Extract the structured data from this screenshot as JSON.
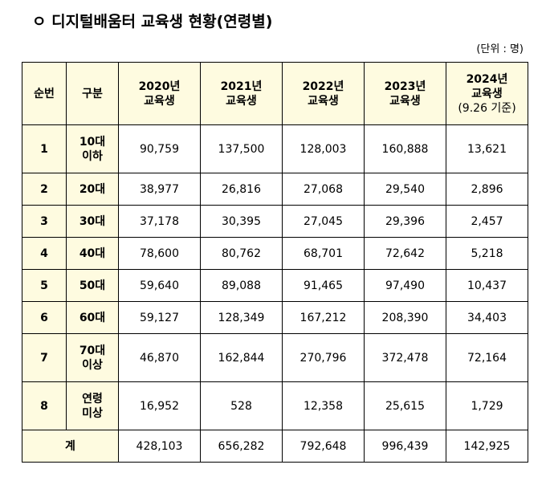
{
  "title": "ㅇ 디지털배움터 교육생 현황(연령별)",
  "unit": "(단위 : 명)",
  "headers": {
    "no": "순번",
    "category": "구분",
    "y2020_a": "2020년",
    "y2020_b": "교육생",
    "y2021_a": "2021년",
    "y2021_b": "교육생",
    "y2022_a": "2022년",
    "y2022_b": "교육생",
    "y2023_a": "2023년",
    "y2023_b": "교육생",
    "y2024_a": "2024년",
    "y2024_b": "교육생",
    "y2024_c": "(9.26 기준)"
  },
  "rows": [
    {
      "no": "1",
      "cat_a": "10대",
      "cat_b": "이하",
      "v2020": "90,759",
      "v2021": "137,500",
      "v2022": "128,003",
      "v2023": "160,888",
      "v2024": "13,621"
    },
    {
      "no": "2",
      "cat_a": "20대",
      "cat_b": "",
      "v2020": "38,977",
      "v2021": "26,816",
      "v2022": "27,068",
      "v2023": "29,540",
      "v2024": "2,896"
    },
    {
      "no": "3",
      "cat_a": "30대",
      "cat_b": "",
      "v2020": "37,178",
      "v2021": "30,395",
      "v2022": "27,045",
      "v2023": "29,396",
      "v2024": "2,457"
    },
    {
      "no": "4",
      "cat_a": "40대",
      "cat_b": "",
      "v2020": "78,600",
      "v2021": "80,762",
      "v2022": "68,701",
      "v2023": "72,642",
      "v2024": "5,218"
    },
    {
      "no": "5",
      "cat_a": "50대",
      "cat_b": "",
      "v2020": "59,640",
      "v2021": "89,088",
      "v2022": "91,465",
      "v2023": "97,490",
      "v2024": "10,437"
    },
    {
      "no": "6",
      "cat_a": "60대",
      "cat_b": "",
      "v2020": "59,127",
      "v2021": "128,349",
      "v2022": "167,212",
      "v2023": "208,390",
      "v2024": "34,403"
    },
    {
      "no": "7",
      "cat_a": "70대",
      "cat_b": "이상",
      "v2020": "46,870",
      "v2021": "162,844",
      "v2022": "270,796",
      "v2023": "372,478",
      "v2024": "72,164"
    },
    {
      "no": "8",
      "cat_a": "연령",
      "cat_b": "미상",
      "v2020": "16,952",
      "v2021": "528",
      "v2022": "12,358",
      "v2023": "25,615",
      "v2024": "1,729"
    }
  ],
  "total": {
    "label": "계",
    "v2020": "428,103",
    "v2021": "656,282",
    "v2022": "792,648",
    "v2023": "996,439",
    "v2024": "142,925"
  }
}
